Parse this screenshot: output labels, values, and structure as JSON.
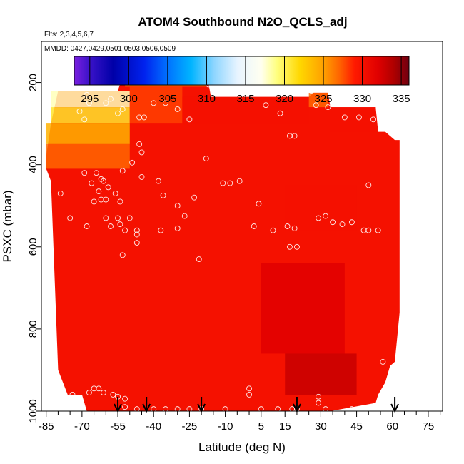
{
  "chart_data": {
    "type": "heatmap",
    "title": "ATOM4 Southbound N2O_QCLS_adj",
    "subtitle_flights": "Flts: 2,3,4,5,6,7",
    "subtitle_dates": "MMDD: 0427,0429,0501,0503,0506,0509",
    "xlabel": "Latitude (deg N)",
    "ylabel": "PSXC (mbar)",
    "xlim": [
      -87,
      81
    ],
    "ylim": [
      1000,
      100
    ],
    "x_ticks": [
      -85,
      -70,
      -55,
      -40,
      -25,
      -10,
      5,
      15,
      30,
      45,
      60,
      75
    ],
    "x_minor_ticks": [
      -80,
      -75,
      -65,
      -60,
      -50,
      -45,
      -35,
      -30,
      -20,
      -15,
      -5,
      0,
      10,
      20,
      25,
      35,
      40,
      50,
      55,
      65,
      70,
      80
    ],
    "y_ticks": [
      200,
      400,
      600,
      800,
      1000
    ],
    "colorbar": {
      "ticks": [
        295,
        300,
        305,
        310,
        315,
        320,
        325,
        330,
        335
      ],
      "range": [
        293,
        336
      ],
      "stops": [
        {
          "v": 293,
          "c": "#7a1fe0"
        },
        {
          "v": 295,
          "c": "#3a12c8"
        },
        {
          "v": 298,
          "c": "#0000a8"
        },
        {
          "v": 302,
          "c": "#0022ee"
        },
        {
          "v": 305,
          "c": "#0072ff"
        },
        {
          "v": 308,
          "c": "#00b4ff"
        },
        {
          "v": 311,
          "c": "#8fd6ff"
        },
        {
          "v": 314,
          "c": "#e8f4ff"
        },
        {
          "v": 317,
          "c": "#fffff0"
        },
        {
          "v": 319,
          "c": "#ffff80"
        },
        {
          "v": 322,
          "c": "#ffd700"
        },
        {
          "v": 325,
          "c": "#ffa000"
        },
        {
          "v": 327,
          "c": "#ff6600"
        },
        {
          "v": 329,
          "c": "#ff1a00"
        },
        {
          "v": 332,
          "c": "#e00000"
        },
        {
          "v": 334,
          "c": "#b00000"
        },
        {
          "v": 336,
          "c": "#700010"
        }
      ]
    },
    "profile_markers": [
      -55,
      -43,
      -20,
      20,
      61
    ],
    "field_extent": [
      {
        "lat": -85,
        "p_top": 380,
        "p_bot": 410
      },
      {
        "lat": -83,
        "p_top": 300,
        "p_bot": 440
      },
      {
        "lat": -80,
        "p_top": 220,
        "p_bot": 900
      },
      {
        "lat": -76,
        "p_top": 220,
        "p_bot": 960
      },
      {
        "lat": -70,
        "p_top": 220,
        "p_bot": 960
      },
      {
        "lat": -68,
        "p_top": 220,
        "p_bot": 1000
      },
      {
        "lat": -55,
        "p_top": 220,
        "p_bot": 1000
      },
      {
        "lat": -52,
        "p_top": 170,
        "p_bot": 1000
      },
      {
        "lat": -18,
        "p_top": 170,
        "p_bot": 1000
      },
      {
        "lat": -16,
        "p_top": 235,
        "p_bot": 1000
      },
      {
        "lat": 25,
        "p_top": 235,
        "p_bot": 1000
      },
      {
        "lat": 27,
        "p_top": 225,
        "p_bot": 1000
      },
      {
        "lat": 33,
        "p_top": 225,
        "p_bot": 1000
      },
      {
        "lat": 34,
        "p_top": 260,
        "p_bot": 1000
      },
      {
        "lat": 53,
        "p_top": 260,
        "p_bot": 980
      },
      {
        "lat": 54,
        "p_top": 320,
        "p_bot": 960
      },
      {
        "lat": 57,
        "p_top": 320,
        "p_bot": 930
      },
      {
        "lat": 59,
        "p_top": 330,
        "p_bot": 890
      },
      {
        "lat": 61,
        "p_top": 340,
        "p_bot": 880
      },
      {
        "lat": 63,
        "p_top": 340,
        "p_bot": 760
      }
    ],
    "field_cells": [
      {
        "lat0": -83,
        "lat1": -50,
        "p0": 220,
        "p1": 260,
        "v": 318
      },
      {
        "lat0": -83,
        "lat1": -50,
        "p0": 260,
        "p1": 300,
        "v": 321
      },
      {
        "lat0": -85,
        "lat1": -50,
        "p0": 300,
        "p1": 350,
        "v": 324
      },
      {
        "lat0": -85,
        "lat1": -50,
        "p0": 350,
        "p1": 410,
        "v": 327
      },
      {
        "lat0": -52,
        "lat1": -18,
        "p0": 170,
        "p1": 210,
        "v": 326
      },
      {
        "lat0": -50,
        "lat1": -28,
        "p0": 210,
        "p1": 300,
        "v": 328
      },
      {
        "lat0": -28,
        "lat1": 25,
        "p0": 235,
        "p1": 300,
        "v": 330
      },
      {
        "lat0": 25,
        "lat1": 33,
        "p0": 225,
        "p1": 260,
        "v": 327
      },
      {
        "lat0": 34,
        "lat1": 53,
        "p0": 260,
        "p1": 320,
        "v": 330
      },
      {
        "lat0": 15,
        "lat1": 45,
        "p0": 450,
        "p1": 560,
        "v": 330
      },
      {
        "lat0": 5,
        "lat1": 40,
        "p0": 640,
        "p1": 860,
        "v": 332
      },
      {
        "lat0": 15,
        "lat1": 45,
        "p0": 860,
        "p1": 960,
        "v": 333
      }
    ],
    "observation_points": [
      {
        "lat": -71,
        "p": 270
      },
      {
        "lat": -69,
        "p": 290
      },
      {
        "lat": -68,
        "p": 230
      },
      {
        "lat": -67,
        "p": 250
      },
      {
        "lat": -66,
        "p": 215
      },
      {
        "lat": -63,
        "p": 210
      },
      {
        "lat": -60,
        "p": 250
      },
      {
        "lat": -58,
        "p": 240
      },
      {
        "lat": -55,
        "p": 275
      },
      {
        "lat": -53,
        "p": 265
      },
      {
        "lat": -48,
        "p": 195
      },
      {
        "lat": -47,
        "p": 200
      },
      {
        "lat": -46,
        "p": 285
      },
      {
        "lat": -44,
        "p": 285
      },
      {
        "lat": -40,
        "p": 250
      },
      {
        "lat": -35,
        "p": 250
      },
      {
        "lat": -30,
        "p": 265
      },
      {
        "lat": -25,
        "p": 290
      },
      {
        "lat": -17,
        "p": 205
      },
      {
        "lat": -15,
        "p": 205
      },
      {
        "lat": -5,
        "p": 225
      },
      {
        "lat": 7,
        "p": 255
      },
      {
        "lat": 13,
        "p": 275
      },
      {
        "lat": 26,
        "p": 220
      },
      {
        "lat": 28,
        "p": 255
      },
      {
        "lat": 33,
        "p": 260
      },
      {
        "lat": 40,
        "p": 285
      },
      {
        "lat": 46,
        "p": 285
      },
      {
        "lat": 52,
        "p": 290
      },
      {
        "lat": 65,
        "p": 330
      },
      {
        "lat": 66,
        "p": 330
      },
      {
        "lat": 67,
        "p": 345
      },
      {
        "lat": 17,
        "p": 330
      },
      {
        "lat": 19,
        "p": 330
      },
      {
        "lat": -46,
        "p": 350
      },
      {
        "lat": -45,
        "p": 370
      },
      {
        "lat": -49,
        "p": 395
      },
      {
        "lat": -53,
        "p": 415
      },
      {
        "lat": -45,
        "p": 430
      },
      {
        "lat": -38,
        "p": 440
      },
      {
        "lat": -18,
        "p": 385
      },
      {
        "lat": -11,
        "p": 445
      },
      {
        "lat": -8,
        "p": 445
      },
      {
        "lat": -4,
        "p": 440
      },
      {
        "lat": -36,
        "p": 475
      },
      {
        "lat": -30,
        "p": 500
      },
      {
        "lat": -23,
        "p": 480
      },
      {
        "lat": 4,
        "p": 495
      },
      {
        "lat": 50,
        "p": 450
      },
      {
        "lat": -69,
        "p": 420
      },
      {
        "lat": -66,
        "p": 445
      },
      {
        "lat": -64,
        "p": 420
      },
      {
        "lat": -62,
        "p": 435
      },
      {
        "lat": -61,
        "p": 440
      },
      {
        "lat": -63,
        "p": 465
      },
      {
        "lat": -59,
        "p": 455
      },
      {
        "lat": -56,
        "p": 470
      },
      {
        "lat": -65,
        "p": 490
      },
      {
        "lat": -62,
        "p": 485
      },
      {
        "lat": -60,
        "p": 485
      },
      {
        "lat": -54,
        "p": 490
      },
      {
        "lat": -79,
        "p": 470
      },
      {
        "lat": -75,
        "p": 530
      },
      {
        "lat": -60,
        "p": 530
      },
      {
        "lat": -55,
        "p": 530
      },
      {
        "lat": -50,
        "p": 530
      },
      {
        "lat": -68,
        "p": 550
      },
      {
        "lat": -58,
        "p": 550
      },
      {
        "lat": -54,
        "p": 545
      },
      {
        "lat": -52,
        "p": 560
      },
      {
        "lat": -47,
        "p": 560
      },
      {
        "lat": -47,
        "p": 590
      },
      {
        "lat": -53,
        "p": 620
      },
      {
        "lat": -47,
        "p": 570
      },
      {
        "lat": -37,
        "p": 560
      },
      {
        "lat": -30,
        "p": 555
      },
      {
        "lat": -27,
        "p": 525
      },
      {
        "lat": -21,
        "p": 630
      },
      {
        "lat": 2,
        "p": 550
      },
      {
        "lat": 10,
        "p": 560
      },
      {
        "lat": 16,
        "p": 550
      },
      {
        "lat": 19,
        "p": 555
      },
      {
        "lat": 17,
        "p": 600
      },
      {
        "lat": 20,
        "p": 600
      },
      {
        "lat": 29,
        "p": 530
      },
      {
        "lat": 32,
        "p": 525
      },
      {
        "lat": 35,
        "p": 540
      },
      {
        "lat": 39,
        "p": 545
      },
      {
        "lat": 43,
        "p": 540
      },
      {
        "lat": 48,
        "p": 560
      },
      {
        "lat": 50,
        "p": 560
      },
      {
        "lat": 54,
        "p": 560
      },
      {
        "lat": 56,
        "p": 880
      },
      {
        "lat": -67,
        "p": 955
      },
      {
        "lat": -65,
        "p": 945
      },
      {
        "lat": -63,
        "p": 945
      },
      {
        "lat": -61,
        "p": 955
      },
      {
        "lat": -57,
        "p": 960
      },
      {
        "lat": -55,
        "p": 965
      },
      {
        "lat": -52,
        "p": 970
      },
      {
        "lat": -52,
        "p": 990
      },
      {
        "lat": -47,
        "p": 995
      },
      {
        "lat": -40,
        "p": 995
      },
      {
        "lat": -35,
        "p": 995
      },
      {
        "lat": -30,
        "p": 995
      },
      {
        "lat": -25,
        "p": 995
      },
      {
        "lat": -20,
        "p": 995
      },
      {
        "lat": -10,
        "p": 995
      },
      {
        "lat": 0,
        "p": 945
      },
      {
        "lat": 0,
        "p": 960
      },
      {
        "lat": 5,
        "p": 995
      },
      {
        "lat": 12,
        "p": 995
      },
      {
        "lat": 18,
        "p": 995
      },
      {
        "lat": 20,
        "p": 995
      },
      {
        "lat": 29,
        "p": 965
      },
      {
        "lat": 29,
        "p": 980
      },
      {
        "lat": 32,
        "p": 995
      },
      {
        "lat": 43,
        "p": 995
      },
      {
        "lat": 50,
        "p": 995
      },
      {
        "lat": -74,
        "p": 960
      }
    ]
  }
}
